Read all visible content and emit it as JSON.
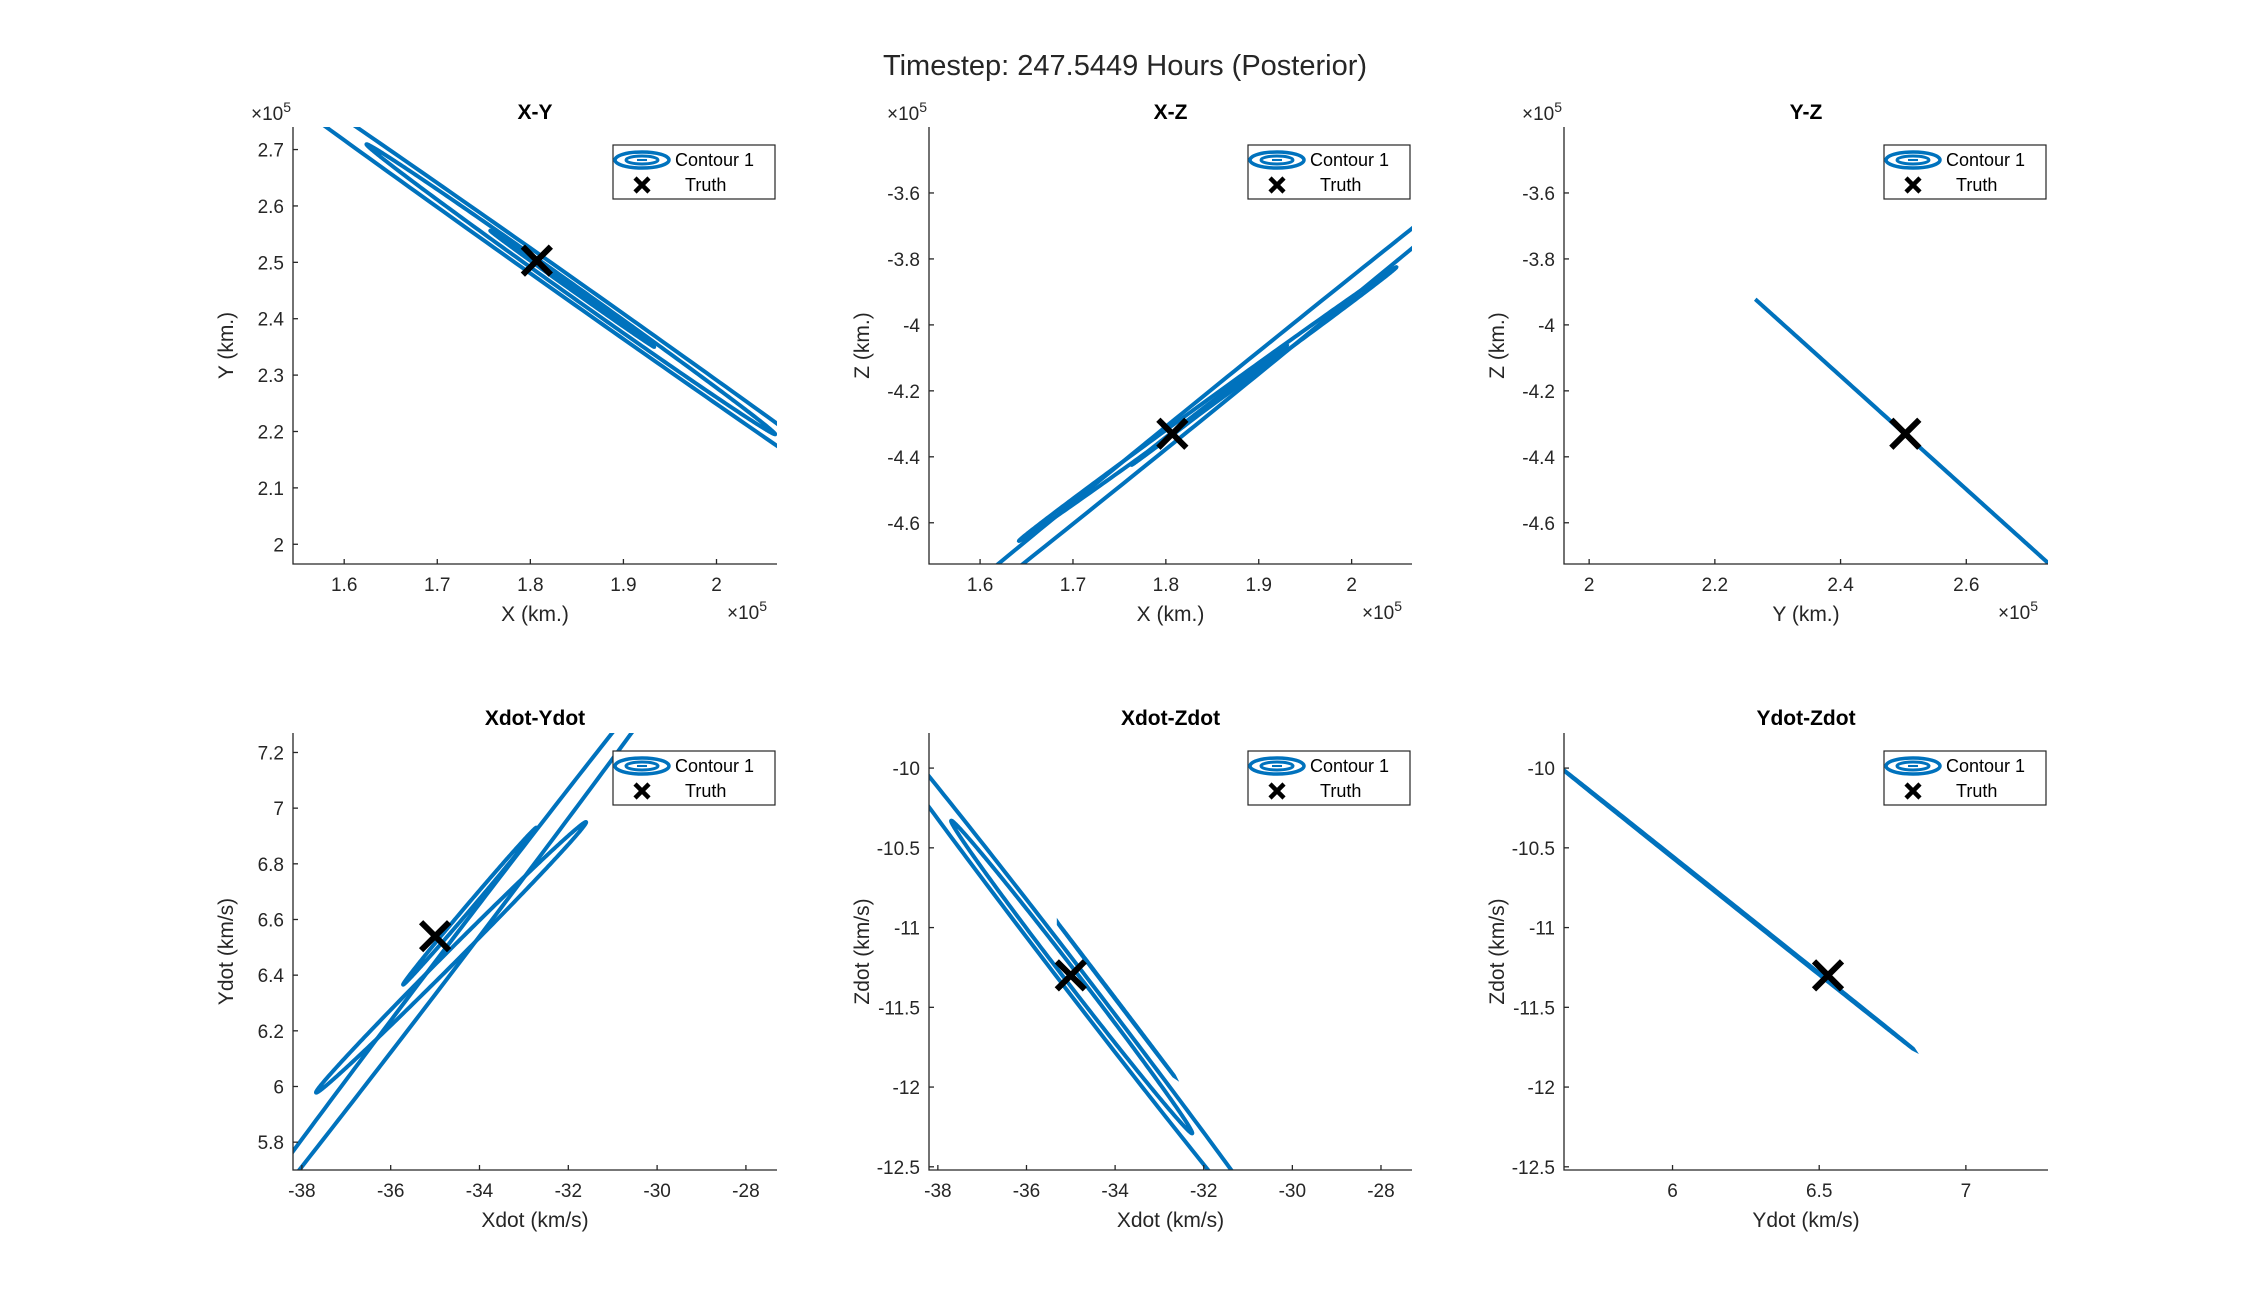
{
  "figure": {
    "title": "Timestep: 247.5449 Hours (Posterior)"
  },
  "colors": {
    "contour": "#0072BD",
    "truth": "#000000",
    "axis": "#262626"
  },
  "chart_data": [
    {
      "type": "line",
      "title": "X-Y",
      "xlabel": "X (km.)",
      "ylabel": "Y (km.)",
      "x_exponent": "5",
      "y_exponent": "5",
      "xlim": [
        1.545,
        2.065
      ],
      "ylim": [
        1.965,
        2.74
      ],
      "xticks": [
        1.6,
        1.7,
        1.8,
        1.9,
        2.0
      ],
      "xtick_labels": [
        "1.6",
        "1.7",
        "1.8",
        "1.9",
        "2"
      ],
      "yticks": [
        2.0,
        2.1,
        2.2,
        2.3,
        2.4,
        2.5,
        2.6,
        2.7
      ],
      "ytick_labels": [
        "2",
        "2.1",
        "2.2",
        "2.3",
        "2.4",
        "2.5",
        "2.6",
        "2.7"
      ],
      "legend": {
        "position": "top-right",
        "entries": [
          "Contour 1",
          "Truth"
        ]
      },
      "truth": [
        1.807,
        2.503
      ],
      "contours": [
        {
          "center": [
            1.845,
            2.453
          ],
          "half_major_end": [
            1.933,
            2.35
          ],
          "half_minor_end": [
            1.8433,
            2.4517
          ]
        },
        {
          "center": [
            1.8435,
            2.4522
          ],
          "half_major_end": [
            2.063,
            2.195
          ],
          "half_minor_end": [
            1.8375,
            2.4472
          ]
        },
        {
          "center": [
            1.8435,
            2.4522
          ],
          "half_major_end": [
            2.3,
            1.92
          ],
          "half_minor_end": [
            1.832,
            2.443
          ]
        }
      ]
    },
    {
      "type": "line",
      "title": "X-Z",
      "xlabel": "X (km.)",
      "ylabel": "Z (km.)",
      "x_exponent": "5",
      "y_exponent": "5",
      "xlim": [
        1.545,
        2.065
      ],
      "ylim": [
        -4.725,
        -3.4
      ],
      "xticks": [
        1.6,
        1.7,
        1.8,
        1.9,
        2.0
      ],
      "xtick_labels": [
        "1.6",
        "1.7",
        "1.8",
        "1.9",
        "2"
      ],
      "yticks": [
        -4.6,
        -4.4,
        -4.2,
        -4.0,
        -3.8,
        -3.6
      ],
      "ytick_labels": [
        "-4.6",
        "-4.4",
        "-4.2",
        "-4",
        "-3.8",
        "-3.6"
      ],
      "legend": {
        "position": "top-right",
        "entries": [
          "Contour 1",
          "Truth"
        ]
      },
      "truth": [
        1.807,
        -4.33
      ],
      "contours": [
        {
          "center": [
            1.8468,
            -4.2435
          ],
          "half_major_end": [
            1.9304,
            -4.0625
          ],
          "half_minor_end": [
            1.8449,
            -4.2426
          ]
        },
        {
          "center": [
            1.845,
            -4.24
          ],
          "half_major_end": [
            2.048,
            -3.825
          ],
          "half_minor_end": [
            1.8366,
            -4.2441
          ]
        },
        {
          "center": [
            1.845,
            -4.24
          ],
          "half_major_end": [
            2.3,
            -3.2
          ],
          "half_minor_end": [
            1.826,
            -4.249
          ]
        }
      ]
    },
    {
      "type": "line",
      "title": "Y-Z",
      "xlabel": "Y (km.)",
      "ylabel": "Z (km.)",
      "x_exponent": "5",
      "y_exponent": "5",
      "xlim": [
        1.96,
        2.73
      ],
      "ylim": [
        -4.725,
        -3.4
      ],
      "xticks": [
        2.0,
        2.2,
        2.4,
        2.6
      ],
      "xtick_labels": [
        "2",
        "2.2",
        "2.4",
        "2.6"
      ],
      "yticks": [
        -4.6,
        -4.4,
        -4.2,
        -4.0,
        -3.8,
        -3.6
      ],
      "ytick_labels": [
        "-4.6",
        "-4.4",
        "-4.2",
        "-4",
        "-3.8",
        "-3.6"
      ],
      "legend": {
        "position": "top-right",
        "entries": [
          "Contour 1",
          "Truth"
        ]
      },
      "truth": [
        2.503,
        -4.33
      ],
      "contours": [
        {
          "center": [
            2.4975,
            -4.3225
          ],
          "half_major_end": [
            2.7305,
            -4.7225
          ],
          "half_minor_end": [
            2.4978,
            -4.3227
          ]
        }
      ]
    },
    {
      "type": "line",
      "title": "Xdot-Ydot",
      "xlabel": "Xdot (km/s)",
      "ylabel": "Ydot (km/s)",
      "xlim": [
        -38.2,
        -27.3
      ],
      "ylim": [
        5.7,
        7.27
      ],
      "xticks": [
        -38,
        -36,
        -34,
        -32,
        -30,
        -28
      ],
      "xtick_labels": [
        "-38",
        "-36",
        "-34",
        "-32",
        "-30",
        "-28"
      ],
      "yticks": [
        5.8,
        6.0,
        6.2,
        6.4,
        6.6,
        6.8,
        7.0,
        7.2
      ],
      "ytick_labels": [
        "5.8",
        "6",
        "6.2",
        "6.4",
        "6.6",
        "6.8",
        "7",
        "7.2"
      ],
      "legend": {
        "position": "top-right",
        "entries": [
          "Contour 1",
          "Truth"
        ]
      },
      "truth": [
        -35.0,
        6.54
      ],
      "contours": [
        {
          "center": [
            -34.22,
            6.648
          ],
          "half_major_end": [
            -32.72,
            6.93
          ],
          "half_minor_end": [
            -34.27,
            6.654
          ]
        },
        {
          "center": [
            -34.64,
            6.464
          ],
          "half_major_end": [
            -31.6,
            6.95
          ],
          "half_minor_end": [
            -34.75,
            6.478
          ]
        },
        {
          "center": [
            -34.64,
            6.464
          ],
          "half_major_end": [
            -28.5,
            7.75
          ],
          "half_minor_end": [
            -34.82,
            6.485
          ]
        }
      ]
    },
    {
      "type": "line",
      "title": "Xdot-Zdot",
      "xlabel": "Xdot (km/s)",
      "ylabel": "Zdot (km/s)",
      "xlim": [
        -38.2,
        -27.3
      ],
      "ylim": [
        -12.52,
        -9.78
      ],
      "xticks": [
        -38,
        -36,
        -34,
        -32,
        -30,
        -28
      ],
      "xtick_labels": [
        "-38",
        "-36",
        "-34",
        "-32",
        "-30",
        "-28"
      ],
      "yticks": [
        -12.5,
        -12.0,
        -11.5,
        -11.0,
        -10.5,
        -10.0
      ],
      "ytick_labels": [
        "-12.5",
        "-12",
        "-11.5",
        "-11",
        "-10.5",
        "-10"
      ],
      "legend": {
        "position": "top-right",
        "entries": [
          "Contour 1",
          "Truth"
        ]
      },
      "truth": [
        -35.0,
        -11.3
      ],
      "contours": [
        {
          "center": [
            -33.97,
            -11.455
          ],
          "half_major_end": [
            -32.67,
            -11.93
          ],
          "half_minor_end": [
            -34.01,
            -11.443
          ]
        },
        {
          "center": [
            -34.98,
            -11.31
          ],
          "half_major_end": [
            -37.7,
            -10.33
          ],
          "half_minor_end": [
            -35.08,
            -11.34
          ]
        },
        {
          "center": [
            -34.98,
            -11.31
          ],
          "half_major_end": [
            -40.4,
            -9.35
          ],
          "half_minor_end": [
            -35.16,
            -11.365
          ]
        }
      ]
    },
    {
      "type": "line",
      "title": "Ydot-Zdot",
      "xlabel": "Ydot (km/s)",
      "ylabel": "Zdot (km/s)",
      "xlim": [
        5.63,
        7.28
      ],
      "ylim": [
        -12.52,
        -9.78
      ],
      "xticks": [
        6.0,
        6.5,
        7.0
      ],
      "xtick_labels": [
        "6",
        "6.5",
        "7"
      ],
      "yticks": [
        -12.5,
        -12.0,
        -11.5,
        -11.0,
        -10.5,
        -10.0
      ],
      "ytick_labels": [
        "-12.5",
        "-12",
        "-11.5",
        "-11",
        "-10.5",
        "-10"
      ],
      "legend": {
        "position": "top-right",
        "entries": [
          "Contour 1",
          "Truth"
        ]
      },
      "truth": [
        6.53,
        -11.3
      ],
      "contours": [
        {
          "center": [
            6.22,
            -10.88
          ],
          "half_major_end": [
            6.82,
            -11.76
          ],
          "half_minor_end": [
            6.222,
            -10.878
          ]
        }
      ]
    }
  ]
}
